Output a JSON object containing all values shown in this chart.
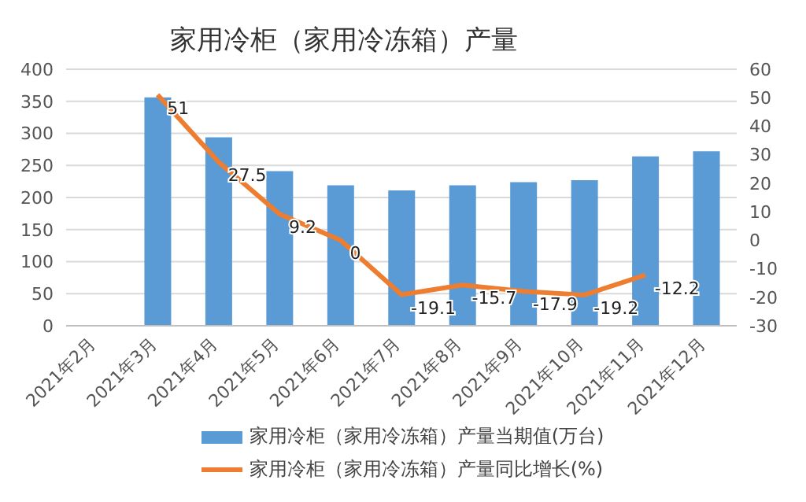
{
  "chart_data": {
    "type": "bar",
    "title": "家用冷柜（家用冷冻箱）产量",
    "categories": [
      "2021年2月",
      "2021年3月",
      "2021年4月",
      "2021年5月",
      "2021年6月",
      "2021年7月",
      "2021年8月",
      "2021年9月",
      "2021年10月",
      "2021年11月",
      "2021年12月"
    ],
    "series": [
      {
        "name": "家用冷柜（家用冷冻箱）产量当期值(万台)",
        "color": "#5b9bd5",
        "values": [
          null,
          356,
          294,
          241,
          219,
          211,
          219,
          224,
          227,
          264,
          272
        ]
      },
      {
        "name": "家用冷柜（家用冷冻箱）产量同比增长(%)",
        "type": "line",
        "axis": "y2",
        "color": "#ed7d31",
        "values": [
          null,
          51,
          27.5,
          9.2,
          0,
          -19.1,
          -15.7,
          -17.9,
          -19.2,
          -12.2,
          null
        ],
        "value_labels": [
          null,
          "51",
          "27.5",
          "9.2",
          "0",
          "-19.1",
          "-15.7",
          "-17.9",
          "-19.2",
          "-12.2",
          null
        ]
      }
    ],
    "ylim": [
      0,
      400
    ],
    "yticks": [
      0,
      50,
      100,
      150,
      200,
      250,
      300,
      350,
      400
    ],
    "y2lim": [
      -30,
      60
    ],
    "y2ticks": [
      -30,
      -20,
      -10,
      0,
      10,
      20,
      30,
      40,
      50,
      60
    ],
    "grid": "y",
    "legend": "bottom",
    "marker": "none"
  }
}
